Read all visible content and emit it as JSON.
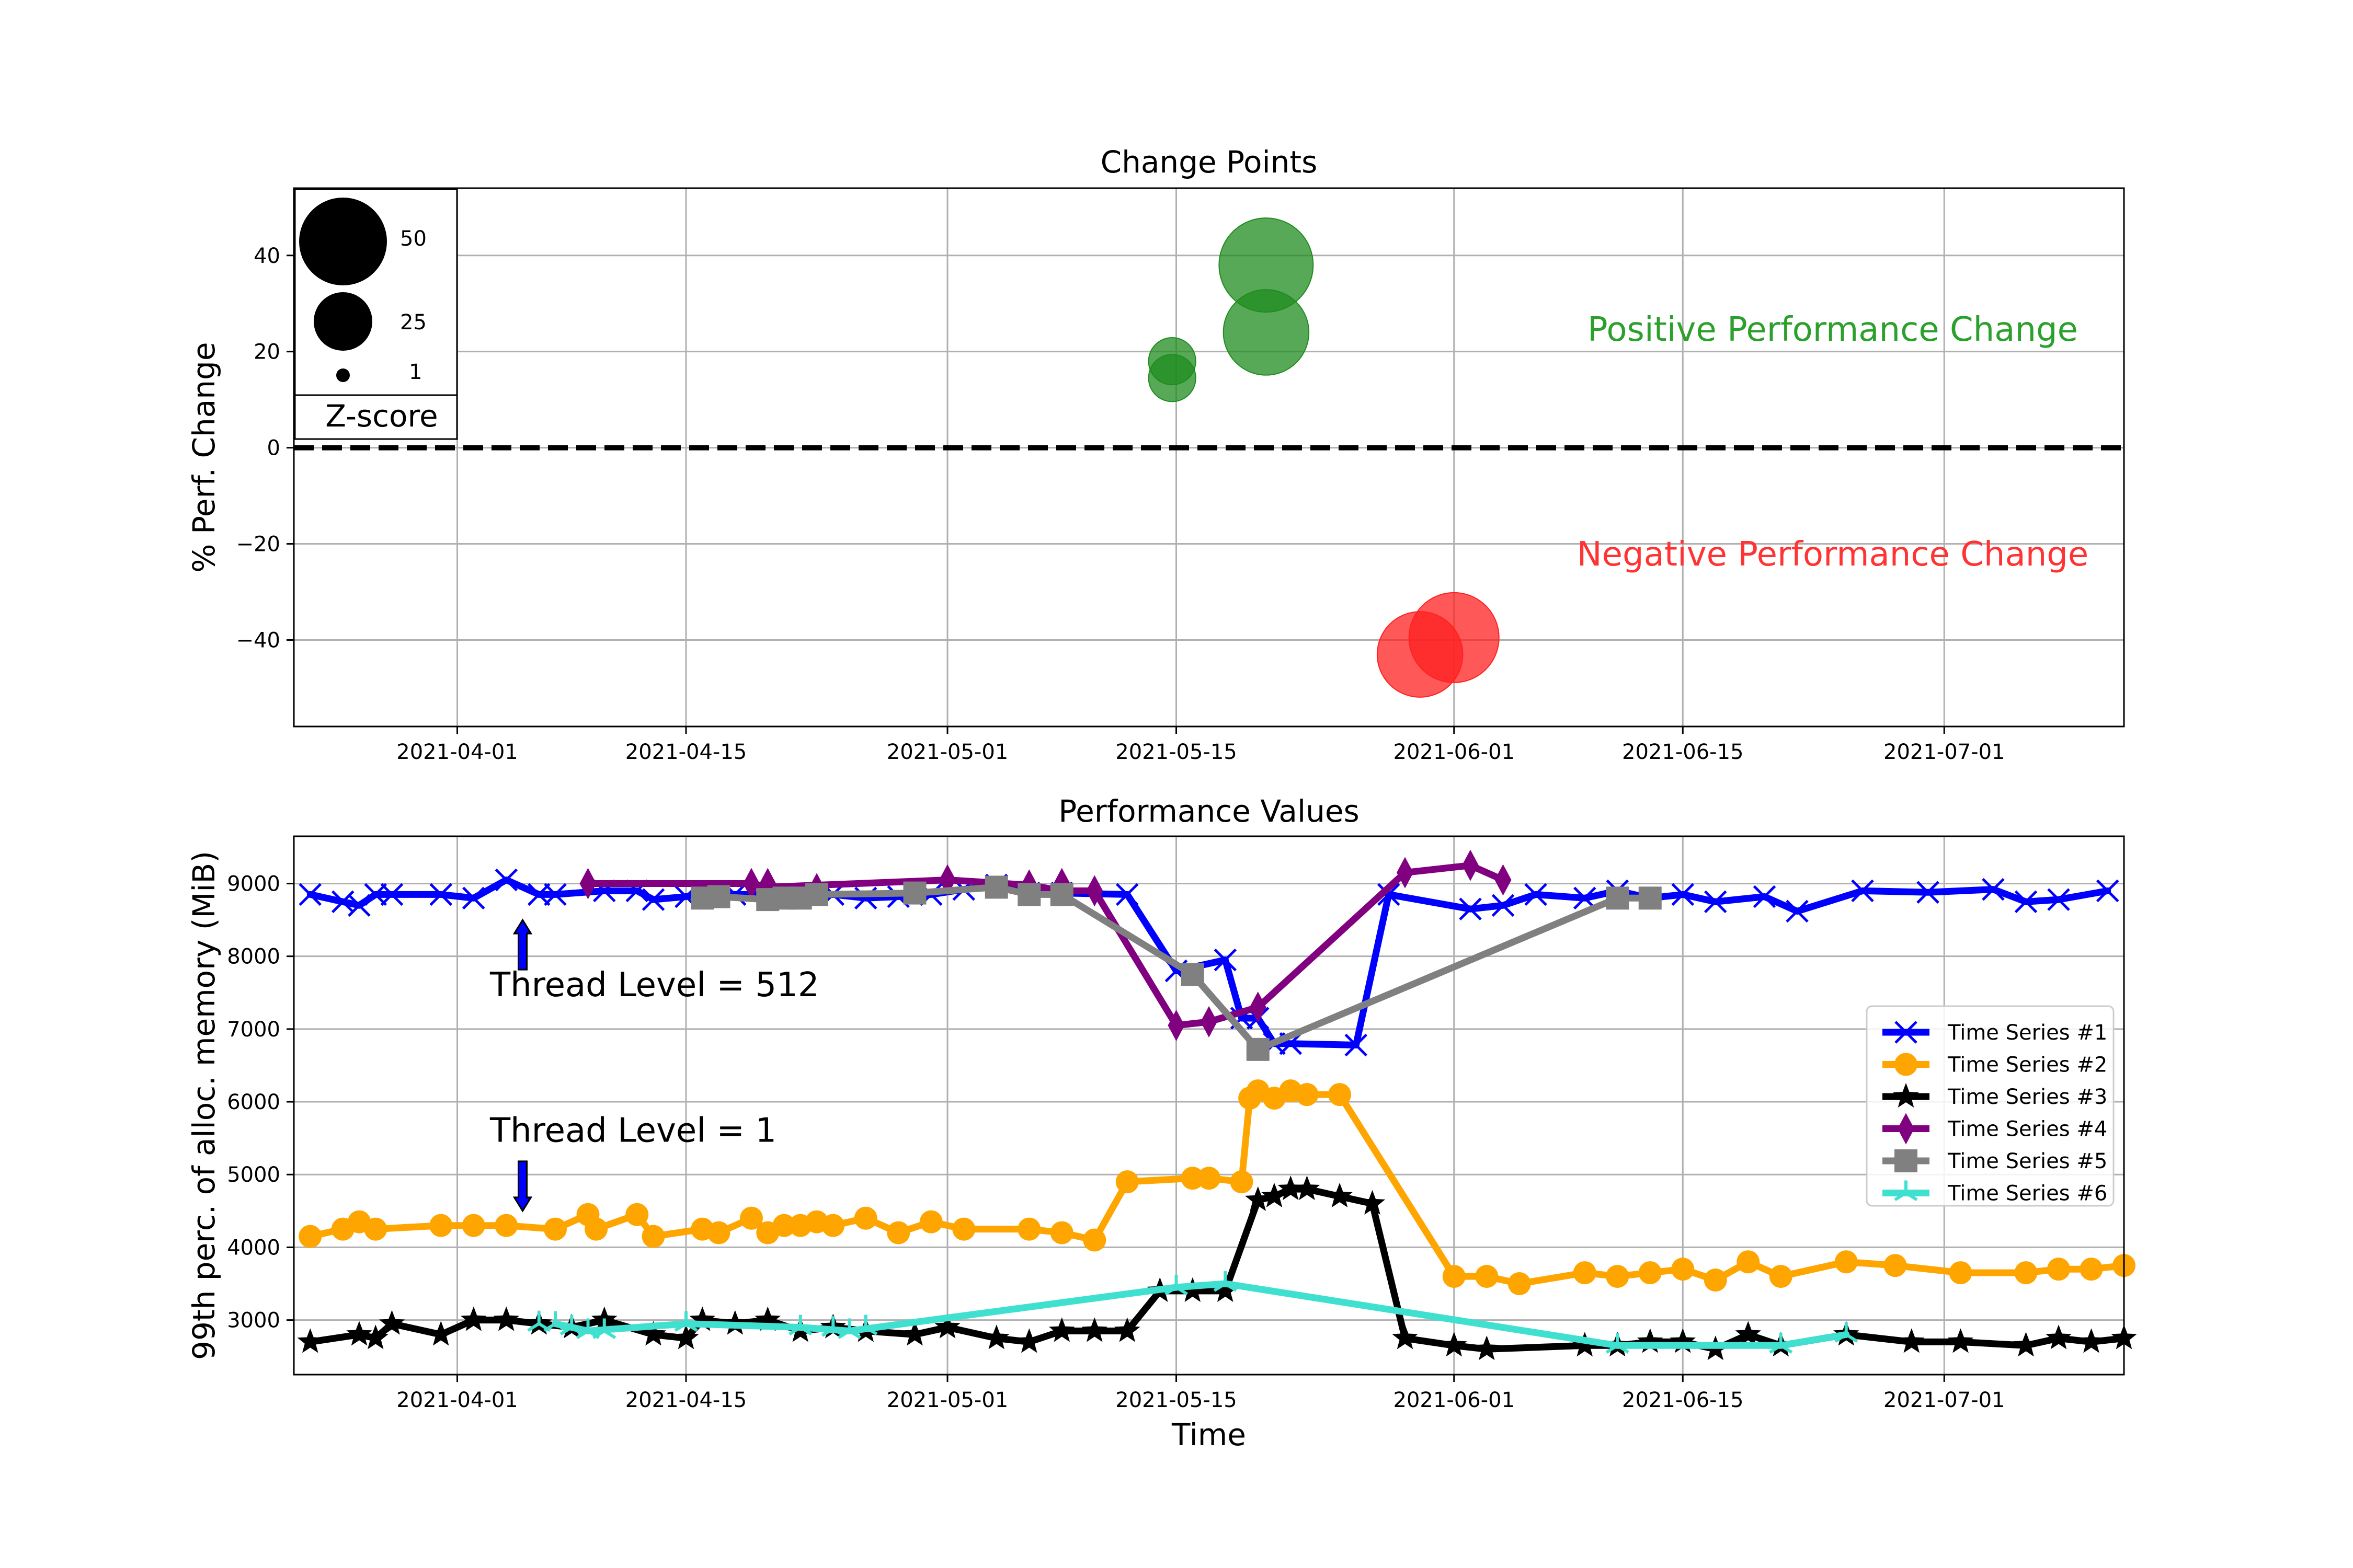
{
  "chart_data": [
    {
      "type": "scatter",
      "title": "Change Points",
      "xlabel": "",
      "ylabel": "% Perf. Change",
      "xlim": [
        "2021-03-22",
        "2021-07-12"
      ],
      "ylim": [
        -58,
        54
      ],
      "x_ticks": [
        "2021-04-01",
        "2021-04-15",
        "2021-05-01",
        "2021-05-15",
        "2021-06-01",
        "2021-06-15",
        "2021-07-01"
      ],
      "y_ticks": [
        -40,
        -20,
        0,
        20,
        40
      ],
      "y_tick_labels": [
        "−40",
        "−20",
        "0",
        "20",
        "40"
      ],
      "grid": true,
      "zero_line": 0,
      "annotations": {
        "positive": "Positive Performance Change",
        "negative": "Negative Performance Change"
      },
      "colors": {
        "positive": "#1f8c1f",
        "negative": "#ff2020"
      },
      "size_legend": {
        "title": "Z-score",
        "entries": [
          {
            "label": "50",
            "value": 50
          },
          {
            "label": "25",
            "value": 25
          },
          {
            "label": "1",
            "value": 1
          }
        ]
      },
      "points": [
        {
          "x": "2021-05-14 18:00",
          "y": 18,
          "z": 9,
          "kind": "positive"
        },
        {
          "x": "2021-05-14 18:00",
          "y": 14.5,
          "z": 9,
          "kind": "positive"
        },
        {
          "x": "2021-05-20 12:00",
          "y": 38,
          "z": 50,
          "kind": "positive"
        },
        {
          "x": "2021-05-20 12:00",
          "y": 24,
          "z": 40,
          "kind": "positive"
        },
        {
          "x": "2021-05-29 22:00",
          "y": -43,
          "z": 40,
          "kind": "negative"
        },
        {
          "x": "2021-06-01 00:00",
          "y": -39.5,
          "z": 45,
          "kind": "negative"
        }
      ]
    },
    {
      "type": "line",
      "title": "Performance Values",
      "xlabel": "Time",
      "ylabel": "99th perc. of alloc. memory (MiB)",
      "xlim": [
        "2021-03-22",
        "2021-07-12"
      ],
      "ylim": [
        2250,
        9650
      ],
      "x_ticks": [
        "2021-04-01",
        "2021-04-15",
        "2021-05-01",
        "2021-05-15",
        "2021-06-01",
        "2021-06-15",
        "2021-07-01"
      ],
      "y_ticks": [
        3000,
        4000,
        5000,
        6000,
        7000,
        8000,
        9000
      ],
      "grid": true,
      "legend_position": "right",
      "annotations": [
        {
          "text": "Thread Level = 512",
          "x": "2021-04-03",
          "y": 7450,
          "arrow_to": {
            "x": "2021-04-05",
            "y": 8500
          }
        },
        {
          "text": "Thread Level = 1",
          "x": "2021-04-03",
          "y": 5450,
          "arrow_to": {
            "x": "2021-04-05",
            "y": 4500
          }
        }
      ],
      "series": [
        {
          "name": "Time Series #1",
          "color": "#0000ff",
          "marker": "x",
          "x": [
            "2021-03-23",
            "2021-03-25",
            "2021-03-26",
            "2021-03-27",
            "2021-03-28",
            "2021-03-31",
            "2021-04-02",
            "2021-04-04",
            "2021-04-06",
            "2021-04-07",
            "2021-04-10",
            "2021-04-12",
            "2021-04-13",
            "2021-04-15",
            "2021-04-16",
            "2021-04-18",
            "2021-04-20",
            "2021-04-22",
            "2021-04-24",
            "2021-04-26",
            "2021-04-28",
            "2021-04-30",
            "2021-05-02",
            "2021-05-04",
            "2021-05-06",
            "2021-05-08",
            "2021-05-12",
            "2021-05-15",
            "2021-05-18",
            "2021-05-19",
            "2021-05-20",
            "2021-05-21",
            "2021-05-22",
            "2021-05-26",
            "2021-05-28",
            "2021-06-02",
            "2021-06-04",
            "2021-06-06",
            "2021-06-09",
            "2021-06-11",
            "2021-06-13",
            "2021-06-15",
            "2021-06-17",
            "2021-06-20",
            "2021-06-22",
            "2021-06-26",
            "2021-06-30",
            "2021-07-04",
            "2021-07-06",
            "2021-07-08",
            "2021-07-11"
          ],
          "y": [
            8850,
            8750,
            8700,
            8850,
            8850,
            8850,
            8800,
            9050,
            8850,
            8850,
            8900,
            8900,
            8780,
            8820,
            8880,
            8850,
            8850,
            8820,
            8850,
            8800,
            8820,
            8850,
            8920,
            8980,
            8870,
            8870,
            8850,
            7800,
            7950,
            7150,
            7150,
            6800,
            6800,
            6780,
            8850,
            8650,
            8700,
            8850,
            8800,
            8900,
            8800,
            8850,
            8750,
            8820,
            8620,
            8900,
            8880,
            8920,
            8750,
            8780,
            8900
          ]
        },
        {
          "name": "Time Series #2",
          "color": "#ffa500",
          "marker": "circle",
          "x": [
            "2021-03-23",
            "2021-03-25",
            "2021-03-26",
            "2021-03-27",
            "2021-03-31",
            "2021-04-02",
            "2021-04-04",
            "2021-04-07",
            "2021-04-09",
            "2021-04-09 12:00",
            "2021-04-12",
            "2021-04-13",
            "2021-04-16",
            "2021-04-17",
            "2021-04-19",
            "2021-04-20",
            "2021-04-21",
            "2021-04-22",
            "2021-04-23",
            "2021-04-24",
            "2021-04-26",
            "2021-04-28",
            "2021-04-30",
            "2021-05-02",
            "2021-05-06",
            "2021-05-08",
            "2021-05-10",
            "2021-05-12",
            "2021-05-16",
            "2021-05-17",
            "2021-05-19",
            "2021-05-19 12:00",
            "2021-05-20",
            "2021-05-21",
            "2021-05-22",
            "2021-05-23",
            "2021-05-25",
            "2021-06-01",
            "2021-06-03",
            "2021-06-05",
            "2021-06-09",
            "2021-06-11",
            "2021-06-13",
            "2021-06-15",
            "2021-06-17",
            "2021-06-19",
            "2021-06-21",
            "2021-06-25",
            "2021-06-28",
            "2021-07-02",
            "2021-07-06",
            "2021-07-08",
            "2021-07-10",
            "2021-07-12"
          ],
          "y": [
            4150,
            4250,
            4350,
            4250,
            4300,
            4300,
            4300,
            4250,
            4450,
            4250,
            4450,
            4150,
            4250,
            4200,
            4400,
            4200,
            4300,
            4300,
            4350,
            4300,
            4400,
            4200,
            4350,
            4250,
            4250,
            4200,
            4100,
            4900,
            4950,
            4950,
            4900,
            6050,
            6150,
            6050,
            6150,
            6100,
            6100,
            3600,
            3600,
            3500,
            3650,
            3600,
            3650,
            3700,
            3550,
            3800,
            3600,
            3800,
            3750,
            3650,
            3650,
            3700,
            3700,
            3750
          ]
        },
        {
          "name": "Time Series #3",
          "color": "#000000",
          "marker": "star",
          "x": [
            "2021-03-23",
            "2021-03-26",
            "2021-03-27",
            "2021-03-28",
            "2021-03-31",
            "2021-04-02",
            "2021-04-04",
            "2021-04-06",
            "2021-04-08",
            "2021-04-10",
            "2021-04-13",
            "2021-04-15",
            "2021-04-16",
            "2021-04-18",
            "2021-04-20",
            "2021-04-22",
            "2021-04-24",
            "2021-04-26",
            "2021-04-29",
            "2021-05-01",
            "2021-05-04",
            "2021-05-06",
            "2021-05-08",
            "2021-05-10",
            "2021-05-12",
            "2021-05-14",
            "2021-05-16",
            "2021-05-18",
            "2021-05-20",
            "2021-05-21",
            "2021-05-22",
            "2021-05-23",
            "2021-05-25",
            "2021-05-27",
            "2021-05-29",
            "2021-06-01",
            "2021-06-03",
            "2021-06-09",
            "2021-06-11",
            "2021-06-13",
            "2021-06-15",
            "2021-06-17",
            "2021-06-19",
            "2021-06-21",
            "2021-06-25",
            "2021-06-29",
            "2021-07-02",
            "2021-07-06",
            "2021-07-08",
            "2021-07-10",
            "2021-07-12"
          ],
          "y": [
            2700,
            2800,
            2750,
            2950,
            2800,
            3000,
            3000,
            2950,
            2900,
            3000,
            2800,
            2750,
            3000,
            2950,
            3000,
            2850,
            2900,
            2850,
            2800,
            2900,
            2750,
            2700,
            2850,
            2850,
            2850,
            3400,
            3400,
            3400,
            4650,
            4700,
            4800,
            4800,
            4700,
            4600,
            2750,
            2650,
            2600,
            2650,
            2650,
            2700,
            2700,
            2600,
            2800,
            2650,
            2800,
            2700,
            2700,
            2650,
            2750,
            2700,
            2750
          ]
        },
        {
          "name": "Time Series #4",
          "color": "#800080",
          "marker": "diamond",
          "x": [
            "2021-04-09",
            "2021-04-19",
            "2021-04-20",
            "2021-05-01",
            "2021-05-06",
            "2021-05-08",
            "2021-05-10",
            "2021-05-15",
            "2021-05-17",
            "2021-05-20",
            "2021-05-29",
            "2021-06-02",
            "2021-06-04"
          ],
          "y": [
            9000,
            9000,
            8950,
            9050,
            8980,
            8900,
            8900,
            7050,
            7100,
            7300,
            9150,
            9250,
            9050
          ],
          "extra_points": [
            {
              "x": "2021-04-20",
              "y": 9000
            },
            {
              "x": "2021-04-23",
              "y": 8930
            },
            {
              "x": "2021-05-08",
              "y": 9000
            }
          ]
        },
        {
          "name": "Time Series #5",
          "color": "#808080",
          "marker": "square",
          "x": [
            "2021-04-16",
            "2021-04-17",
            "2021-04-20",
            "2021-04-21",
            "2021-04-22",
            "2021-04-23",
            "2021-04-29",
            "2021-05-04",
            "2021-05-06",
            "2021-05-08",
            "2021-05-16",
            "2021-05-20",
            "2021-06-11",
            "2021-06-13"
          ],
          "y": [
            8800,
            8820,
            8780,
            8800,
            8800,
            8850,
            8870,
            8950,
            8850,
            8850,
            7750,
            6720,
            8800,
            8800
          ]
        },
        {
          "name": "Time Series #6",
          "color": "#40e0d0",
          "marker": "tri",
          "x": [
            "2021-04-07",
            "2021-04-08",
            "2021-04-09",
            "2021-04-15",
            "2021-04-22",
            "2021-04-25",
            "2021-05-15",
            "2021-05-18",
            "2021-06-11",
            "2021-06-21",
            "2021-06-25"
          ],
          "y": [
            2950,
            2900,
            2850,
            2950,
            2900,
            2850,
            3450,
            3500,
            2650,
            2650,
            2800
          ],
          "extra_points": [
            {
              "x": "2021-04-06",
              "y": 2950
            },
            {
              "x": "2021-04-10",
              "y": 2850
            },
            {
              "x": "2021-04-24",
              "y": 2880
            },
            {
              "x": "2021-04-26",
              "y": 2900
            }
          ]
        }
      ]
    }
  ]
}
